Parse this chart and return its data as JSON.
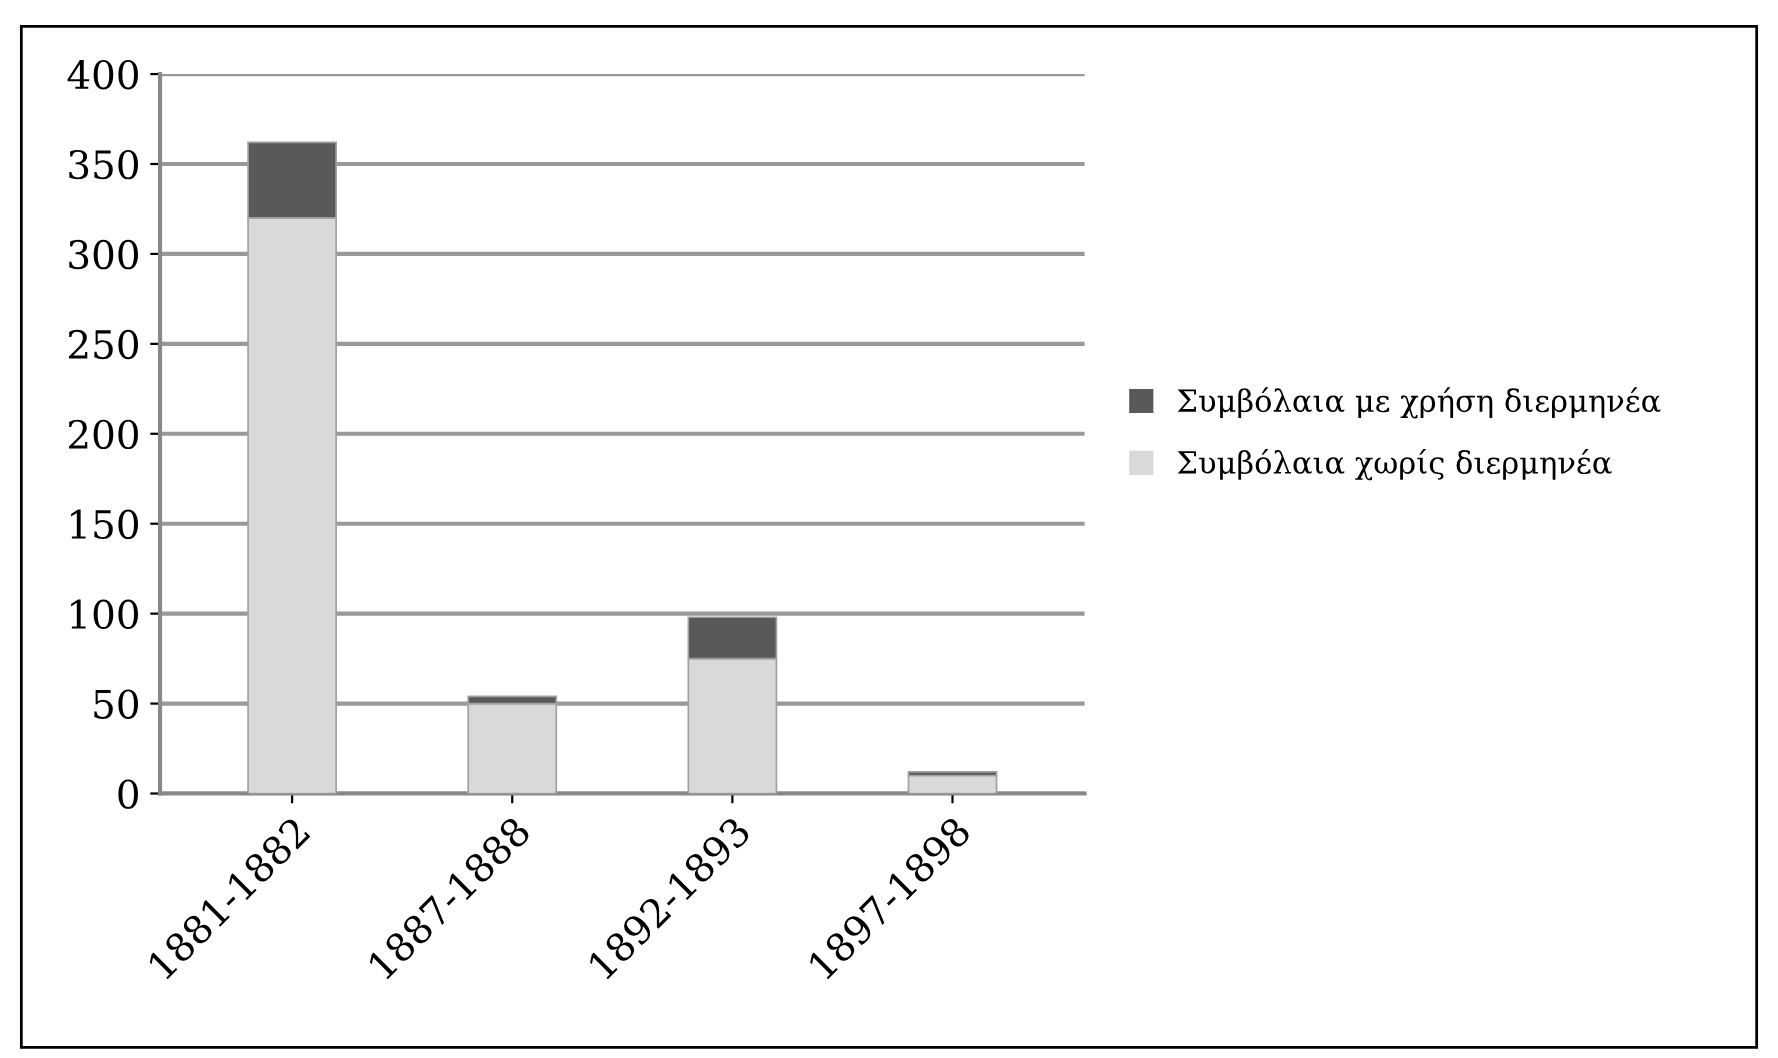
{
  "chart_data": {
    "type": "bar",
    "stacked": true,
    "categories": [
      "1881-1882",
      "1887-1888",
      "1892-1893",
      "1897-1898"
    ],
    "series": [
      {
        "name": "Συμβόλαια χωρίς διερμηνέα",
        "color": "#d9d9d9",
        "values": [
          320,
          50,
          75,
          10
        ]
      },
      {
        "name": "Συμβόλαια με χρήση διερμηνέα",
        "color": "#595959",
        "values": [
          42,
          4,
          23,
          2
        ]
      }
    ],
    "ylim": [
      0,
      400
    ],
    "yticks": [
      0,
      50,
      100,
      150,
      200,
      250,
      300,
      350,
      400
    ],
    "grid": "y",
    "legend": "right"
  }
}
